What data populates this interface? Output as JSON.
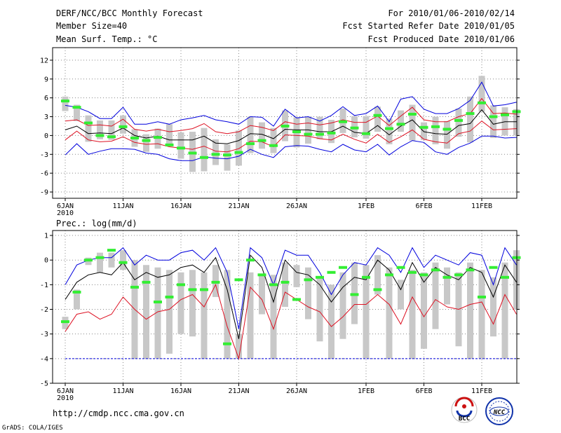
{
  "header": {
    "title": "DERF/NCC/BCC Monthly Forecast",
    "member_size": "Member Size=40",
    "variable": "Mean Surf. Temp.: °C",
    "period": "For 2010/01/06-2010/02/14",
    "started": "Fcst Started Refer Date 2010/01/05",
    "produced": "Fcst Produced Date 2010/01/06"
  },
  "footer": {
    "url": "http://cmdp.ncc.cma.gov.cn",
    "grads": "GrADS: COLA/IGES",
    "logo_left": "BCC",
    "logo_right": "NCC"
  },
  "colors": {
    "box": "#c8c8c8",
    "obs": "#33ee33",
    "mean": "#000000",
    "sd": "#dd1122",
    "range": "#0000dd",
    "grid": "#888888"
  },
  "chart_data": [
    {
      "type": "line",
      "name": "temperature",
      "title": "Mean Surf. Temp.: °C",
      "ylabel": "°C",
      "ylim": [
        -10,
        14
      ],
      "yticks": [
        -9,
        -6,
        -3,
        0,
        3,
        6,
        9,
        12
      ],
      "xtick_labels": [
        "6JAN\n2010",
        "11JAN",
        "16JAN",
        "21JAN",
        "26JAN",
        "1FEB",
        "6FEB",
        "11FEB"
      ],
      "days": [
        1,
        2,
        3,
        4,
        5,
        6,
        7,
        8,
        9,
        10,
        11,
        12,
        13,
        14,
        15,
        16,
        17,
        18,
        19,
        20,
        21,
        22,
        23,
        24,
        25,
        26,
        27,
        28,
        29,
        30,
        31,
        32,
        33,
        34,
        35,
        36,
        37,
        38,
        39,
        40
      ],
      "series": [
        {
          "name": "ensemble_max",
          "values": [
            4.8,
            4.5,
            3.8,
            2.7,
            2.7,
            4.5,
            1.8,
            1.8,
            2.2,
            1.8,
            2.5,
            2.8,
            3.2,
            2.5,
            2.2,
            1.8,
            3.0,
            2.9,
            1.5,
            4.2,
            2.8,
            3.0,
            2.3,
            3.2,
            4.6,
            3.2,
            3.5,
            4.7,
            2.2,
            5.8,
            6.2,
            4.2,
            3.5,
            3.5,
            4.3,
            5.6,
            8.5,
            4.7,
            4.9,
            5.3
          ]
        },
        {
          "name": "mean_plus_sd",
          "values": [
            2.3,
            2.5,
            1.6,
            1.7,
            1.5,
            2.6,
            1.0,
            0.7,
            1.0,
            0.6,
            0.8,
            1.1,
            1.9,
            0.6,
            0.3,
            0.6,
            1.6,
            1.3,
            0.8,
            2.2,
            1.8,
            2.0,
            1.7,
            2.0,
            2.5,
            2.1,
            2.1,
            3.1,
            1.6,
            3.1,
            4.5,
            2.5,
            2.2,
            2.2,
            3.0,
            3.5,
            5.9,
            3.5,
            3.6,
            3.4
          ]
        },
        {
          "name": "ensemble_mean",
          "values": [
            0.9,
            1.5,
            0.3,
            0.4,
            0.3,
            1.2,
            0.0,
            -0.4,
            -0.1,
            -0.7,
            -0.7,
            -0.7,
            -0.1,
            -1.2,
            -1.3,
            -0.8,
            0.3,
            0.2,
            -0.5,
            1.0,
            0.9,
            0.9,
            0.6,
            0.6,
            1.5,
            0.5,
            0.3,
            1.6,
            0.1,
            1.5,
            2.5,
            0.6,
            0.3,
            0.2,
            1.6,
            1.9,
            4.1,
            1.8,
            2.2,
            2.2
          ]
        },
        {
          "name": "mean_minus_sd",
          "values": [
            -0.7,
            0.7,
            -0.7,
            -1.0,
            -0.9,
            -0.2,
            -1.1,
            -1.4,
            -1.3,
            -1.8,
            -2.0,
            -2.2,
            -1.7,
            -2.5,
            -2.6,
            -2.1,
            -0.9,
            -1.0,
            -1.8,
            0.1,
            0.0,
            -0.1,
            -0.5,
            -0.7,
            0.2,
            -0.6,
            -1.2,
            0.2,
            -1.1,
            -0.2,
            0.9,
            -0.6,
            -1.0,
            -1.2,
            0.3,
            0.7,
            2.3,
            0.9,
            1.0,
            1.1
          ]
        },
        {
          "name": "ensemble_min",
          "values": [
            -3.1,
            -1.3,
            -3.0,
            -2.5,
            -2.1,
            -2.1,
            -2.2,
            -2.8,
            -3.0,
            -3.7,
            -4.0,
            -4.0,
            -3.4,
            -3.6,
            -3.7,
            -3.3,
            -2.2,
            -3.0,
            -3.5,
            -1.8,
            -1.6,
            -1.7,
            -2.2,
            -2.6,
            -1.4,
            -2.3,
            -2.6,
            -1.4,
            -3.1,
            -1.8,
            -0.8,
            -1.1,
            -2.6,
            -3.0,
            -1.9,
            -1.2,
            -0.1,
            -0.1,
            -0.4,
            -0.3
          ]
        },
        {
          "name": "box_hi",
          "values": [
            6.2,
            4.9,
            3.2,
            2.4,
            2.4,
            3.2,
            1.0,
            0.2,
            1.1,
            1.8,
            0.5,
            0.6,
            1.2,
            -0.6,
            -1.4,
            0.8,
            3.0,
            2.1,
            1.2,
            4.0,
            2.9,
            3.0,
            3.0,
            2.5,
            4.3,
            3.1,
            3.1,
            4.6,
            2.7,
            4.0,
            4.9,
            2.1,
            3.0,
            2.3,
            4.3,
            6.2,
            9.5,
            4.8,
            4.5,
            4.2
          ]
        },
        {
          "name": "box_lo",
          "values": [
            3.9,
            2.3,
            -1.0,
            -0.6,
            -0.7,
            0.3,
            -1.8,
            -2.6,
            -2.1,
            -1.6,
            -3.7,
            -5.8,
            -5.7,
            -4.7,
            -5.6,
            -4.8,
            -2.8,
            -2.1,
            -2.8,
            -0.9,
            -1.9,
            -1.3,
            -0.6,
            -1.2,
            0.4,
            -0.3,
            -0.5,
            0.6,
            -1.4,
            0.6,
            -0.8,
            -0.7,
            -1.4,
            -2.1,
            -0.2,
            -1.1,
            3.8,
            -0.4,
            0.0,
            0.0
          ]
        },
        {
          "name": "observed",
          "values": [
            5.5,
            4.5,
            2.0,
            0.0,
            -0.2,
            1.4,
            -0.4,
            -0.8,
            -0.3,
            -1.5,
            -2.0,
            -2.8,
            -3.5,
            -3.0,
            -3.1,
            -2.7,
            -1.3,
            -0.8,
            -1.6,
            1.5,
            0.6,
            0.2,
            0.2,
            0.4,
            2.2,
            1.2,
            0.3,
            3.2,
            1.1,
            1.8,
            3.4,
            1.3,
            1.4,
            1.0,
            2.4,
            3.5,
            5.2,
            3.0,
            3.3,
            3.8
          ]
        }
      ]
    },
    {
      "type": "line",
      "name": "precipitation",
      "title": "Prec.: log(mm/d)",
      "ylabel": "log(mm/d)",
      "ylim": [
        -5,
        1.2
      ],
      "yticks": [
        -5,
        -4,
        -3,
        -2,
        -1,
        0,
        1
      ],
      "xtick_labels": [
        "6JAN\n2010",
        "11JAN",
        "16JAN",
        "21JAN",
        "26JAN",
        "1FEB",
        "6FEB",
        "11FEB"
      ],
      "threshold": -4,
      "days": [
        1,
        2,
        3,
        4,
        5,
        6,
        7,
        8,
        9,
        10,
        11,
        12,
        13,
        14,
        15,
        16,
        17,
        18,
        19,
        20,
        21,
        22,
        23,
        24,
        25,
        26,
        27,
        28,
        29,
        30,
        31,
        32,
        33,
        34,
        35,
        36,
        37,
        38,
        39,
        40
      ],
      "series": [
        {
          "name": "ensemble_max",
          "values": [
            -1.0,
            -0.2,
            0.0,
            0.1,
            0.1,
            0.5,
            -0.2,
            0.2,
            0.0,
            0.0,
            0.3,
            0.4,
            0.0,
            0.5,
            -0.5,
            -2.8,
            0.5,
            0.1,
            -1.0,
            0.4,
            0.2,
            0.2,
            -0.5,
            -1.4,
            -0.6,
            -0.1,
            -0.2,
            0.5,
            0.2,
            -0.5,
            0.5,
            -0.3,
            0.2,
            0.0,
            -0.2,
            0.3,
            0.2,
            -1.0,
            0.5,
            -0.2
          ]
        },
        {
          "name": "ensemble_mean",
          "values": [
            -1.6,
            -0.9,
            -0.6,
            -0.5,
            -0.6,
            -0.1,
            -0.8,
            -0.5,
            -0.7,
            -0.6,
            -0.3,
            -0.2,
            -0.5,
            0.1,
            -1.2,
            -3.2,
            0.2,
            -0.3,
            -1.7,
            0.0,
            -0.5,
            -0.6,
            -1.0,
            -1.7,
            -1.1,
            -0.7,
            -0.8,
            0.0,
            -0.4,
            -1.2,
            -0.1,
            -0.9,
            -0.3,
            -0.6,
            -0.8,
            -0.3,
            -0.5,
            -1.5,
            -0.2,
            -0.9
          ]
        },
        {
          "name": "mean_minus_sd",
          "values": [
            -2.9,
            -2.2,
            -2.1,
            -2.4,
            -2.2,
            -1.5,
            -2.0,
            -2.4,
            -2.1,
            -2.0,
            -1.6,
            -1.4,
            -1.9,
            -1.0,
            -2.7,
            -4.0,
            -1.1,
            -1.6,
            -2.8,
            -1.3,
            -1.6,
            -1.9,
            -2.1,
            -2.7,
            -2.3,
            -1.8,
            -1.8,
            -1.4,
            -1.8,
            -2.6,
            -1.5,
            -2.3,
            -1.6,
            -1.9,
            -2.0,
            -1.8,
            -1.7,
            -2.6,
            -1.4,
            -2.2
          ]
        },
        {
          "name": "box_hi",
          "values": [
            -2.3,
            -1.2,
            0.1,
            0.3,
            0.3,
            0.4,
            0.0,
            -0.2,
            -0.3,
            -0.4,
            -0.5,
            -0.4,
            -0.5,
            -0.2,
            -0.4,
            -3.0,
            -0.5,
            -0.6,
            -0.6,
            -0.1,
            -0.2,
            -0.3,
            -0.7,
            -1.0,
            -0.5,
            -0.1,
            -0.2,
            0.2,
            -0.3,
            -0.8,
            -0.4,
            -0.5,
            -0.1,
            -0.3,
            -0.5,
            -0.1,
            -0.4,
            -0.7,
            -0.1,
            0.4
          ]
        },
        {
          "name": "box_lo",
          "values": [
            -2.8,
            -2.0,
            -0.2,
            -0.5,
            -0.3,
            -0.4,
            -4.0,
            -4.0,
            -4.0,
            -3.8,
            -3.0,
            -3.1,
            -4.0,
            -1.5,
            -4.0,
            -4.0,
            -4.0,
            -2.2,
            -4.0,
            -1.9,
            -1.1,
            -2.4,
            -3.3,
            -4.0,
            -3.2,
            -2.6,
            -4.0,
            -1.4,
            -4.0,
            -2.0,
            -4.0,
            -3.6,
            -2.8,
            -1.8,
            -3.5,
            -4.0,
            -4.0,
            -3.1,
            -4.0,
            -2.0
          ]
        },
        {
          "name": "observed",
          "values": [
            -2.5,
            -1.3,
            0.0,
            0.1,
            0.4,
            -0.1,
            -1.1,
            -0.9,
            -1.7,
            -1.5,
            -1.0,
            -1.2,
            -1.2,
            -0.9,
            -3.4,
            -0.8,
            0.0,
            -0.6,
            -1.0,
            -0.9,
            -1.6,
            -0.8,
            -0.7,
            -0.5,
            -0.3,
            -1.4,
            -0.7,
            -1.2,
            -0.6,
            -0.3,
            -0.5,
            -0.6,
            -0.4,
            -0.7,
            -0.6,
            -0.4,
            -1.5,
            -0.3,
            -0.7,
            0.1
          ]
        }
      ]
    }
  ]
}
